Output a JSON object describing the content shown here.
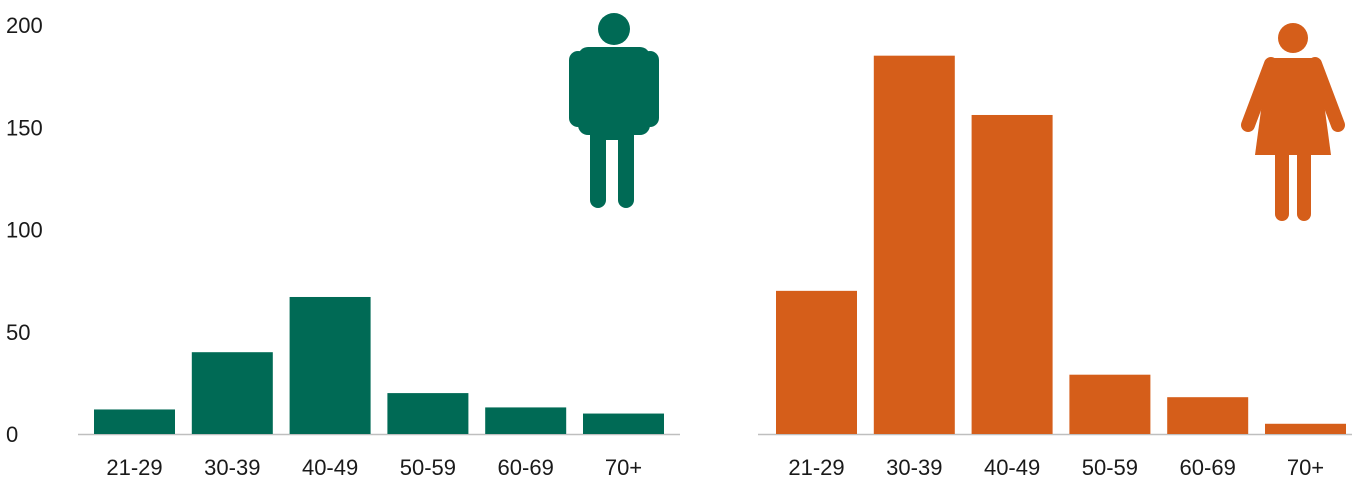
{
  "chart_data": [
    {
      "type": "bar",
      "categories": [
        "21-29",
        "30-39",
        "40-49",
        "50-59",
        "60-69",
        "70+"
      ],
      "values": [
        12,
        40,
        67,
        20,
        13,
        10
      ],
      "ylim": [
        0,
        200
      ],
      "yticks": [
        0,
        50,
        100,
        150,
        200
      ],
      "color": "#006A55",
      "grid": false,
      "icon": "male-figure-icon"
    },
    {
      "type": "bar",
      "categories": [
        "21-29",
        "30-39",
        "40-49",
        "50-59",
        "60-69",
        "70+"
      ],
      "values": [
        70,
        185,
        156,
        29,
        18,
        5
      ],
      "ylim": [
        0,
        200
      ],
      "color": "#D55E1A",
      "grid": false,
      "icon": "female-figure-icon"
    }
  ]
}
